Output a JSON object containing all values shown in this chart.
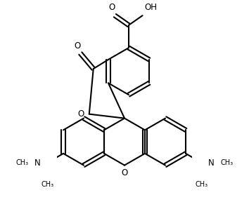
{
  "bg_color": "#ffffff",
  "line_color": "#000000",
  "lw": 1.5,
  "figsize": [
    3.54,
    2.98
  ],
  "dpi": 100,
  "xlim": [
    -0.3,
    1.3
  ],
  "ylim": [
    -0.75,
    1.7
  ]
}
